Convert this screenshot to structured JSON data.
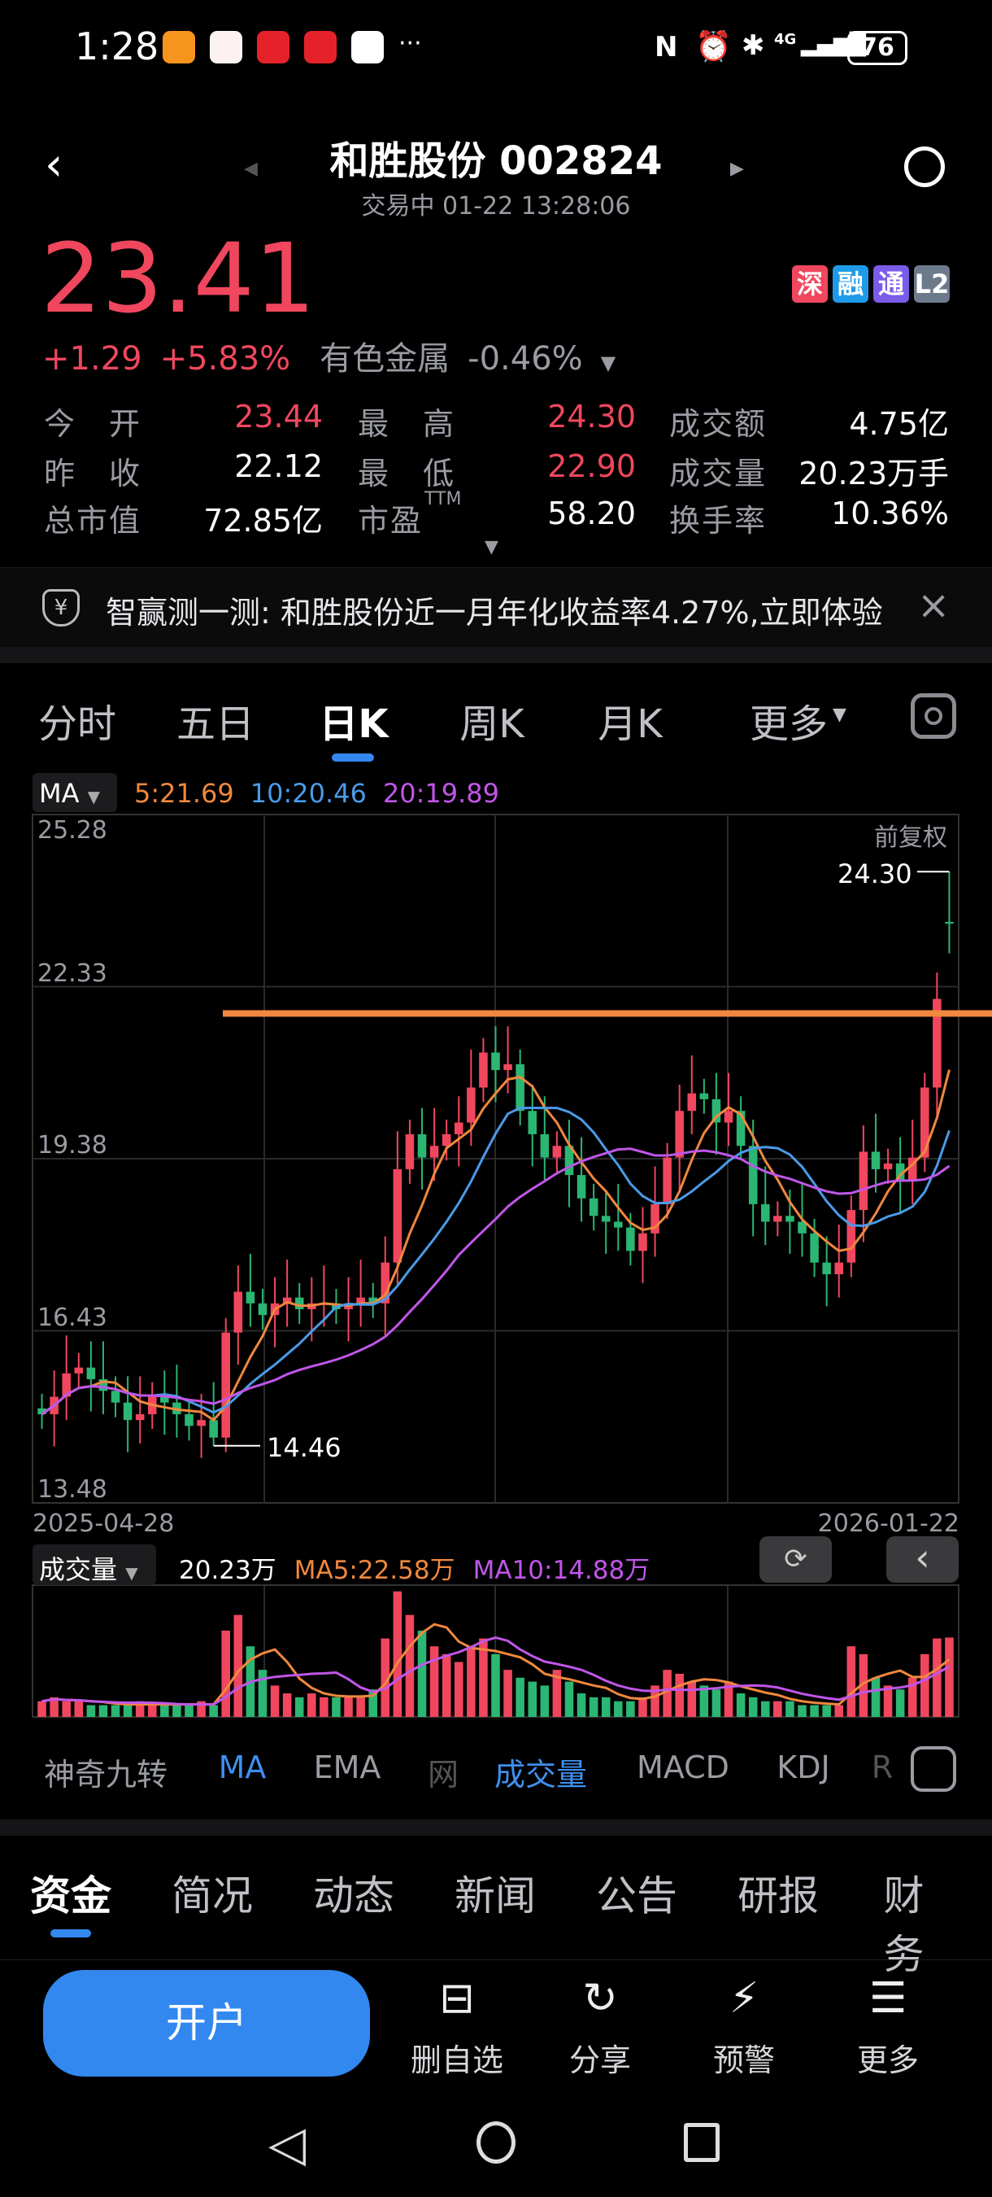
{
  "status_bar": {
    "time": "1:28",
    "battery": "76",
    "network": "4G",
    "more": "···"
  },
  "header": {
    "title": "和胜股份 002824",
    "subtitle": "交易中 01-22 13:28:06"
  },
  "quote": {
    "price": "23.41",
    "change": "+1.29",
    "change_pct": "+5.83%",
    "sector": "有色金属",
    "sector_change": "-0.46%",
    "badges": [
      {
        "label": "深",
        "color": "#f0475e"
      },
      {
        "label": "融",
        "color": "#1e9be8"
      },
      {
        "label": "通",
        "color": "#7b5ce8"
      },
      {
        "label": "L2",
        "color": "#6c7a8c"
      }
    ],
    "stats": [
      {
        "label": "今　开",
        "value": "23.44",
        "color": "#f0475e"
      },
      {
        "label": "最　高",
        "value": "24.30",
        "color": "#f0475e"
      },
      {
        "label": "成交额",
        "value": "4.75亿",
        "color": "#ffffff"
      },
      {
        "label": "昨　收",
        "value": "22.12",
        "color": "#ffffff"
      },
      {
        "label": "最　低",
        "value": "22.90",
        "color": "#f0475e"
      },
      {
        "label": "成交量",
        "value": "20.23万手",
        "color": "#ffffff"
      },
      {
        "label": "总市值",
        "value": "72.85亿",
        "color": "#ffffff"
      },
      {
        "label": "市盈",
        "sup": "TTM",
        "value": "58.20",
        "color": "#ffffff"
      },
      {
        "label": "换手率",
        "value": "10.36%",
        "color": "#ffffff"
      }
    ]
  },
  "banner": {
    "text": "智赢测一测: 和胜股份近一月年化收益率4.27%,立即体验"
  },
  "chart_tabs": [
    "分时",
    "五日",
    "日K",
    "周K",
    "月K",
    "更多"
  ],
  "active_chart_tab": "日K",
  "ma_legend": {
    "selector": "MA",
    "ma5": "5:21.69",
    "ma10": "10:20.46",
    "ma20": "20:19.89"
  },
  "colors": {
    "up": "#f0475e",
    "down": "#2bb673",
    "ma5": "#f0883e",
    "ma10": "#4a9be8",
    "ma20": "#c056e8",
    "accent": "#3388f0",
    "trendline": "#f0883e"
  },
  "chart_data": {
    "type": "candlestick",
    "adjust_label": "前复权",
    "y_ticks": [
      "25.28",
      "22.33",
      "19.38",
      "16.43",
      "13.48"
    ],
    "ylim": [
      13.48,
      25.28
    ],
    "x_start": "2025-04-28",
    "x_end": "2026-01-22",
    "grid": true,
    "max_label": "24.30",
    "min_label": "14.46",
    "trendline_price": 21.87,
    "close": [
      15.0,
      15.3,
      15.7,
      15.8,
      15.6,
      15.4,
      15.2,
      14.9,
      15.0,
      15.3,
      15.2,
      15.0,
      14.8,
      14.9,
      14.6,
      16.4,
      17.1,
      16.9,
      16.7,
      16.9,
      17.0,
      16.8,
      16.9,
      16.9,
      16.8,
      16.9,
      17.0,
      16.9,
      17.6,
      19.2,
      19.8,
      19.4,
      19.6,
      19.8,
      20.0,
      20.6,
      21.2,
      20.9,
      21.0,
      20.2,
      19.8,
      19.4,
      19.6,
      19.1,
      18.7,
      18.4,
      18.3,
      18.2,
      17.8,
      18.1,
      18.6,
      19.4,
      20.2,
      20.5,
      20.4,
      20.0,
      20.2,
      19.6,
      18.6,
      18.3,
      18.4,
      18.3,
      18.1,
      17.6,
      17.4,
      17.6,
      18.5,
      19.5,
      19.2,
      19.3,
      19.0,
      19.4,
      20.6,
      22.12,
      23.41
    ],
    "last_day": {
      "open": 23.44,
      "high": 24.3,
      "low": 22.9,
      "close": 23.41
    },
    "volume": {
      "label": "成交量",
      "value": "20.23万",
      "ma5": "MA5:22.58万",
      "ma10": "MA10:14.88万",
      "values": [
        4,
        5,
        4,
        4,
        3,
        3,
        3,
        3,
        4,
        3,
        3,
        3,
        3,
        4,
        3,
        22,
        26,
        18,
        12,
        8,
        6,
        5,
        6,
        5,
        5,
        5,
        5,
        7,
        20,
        32,
        26,
        22,
        18,
        16,
        14,
        18,
        20,
        16,
        12,
        10,
        9,
        8,
        12,
        9,
        6,
        5,
        5,
        4,
        4,
        5,
        8,
        12,
        11,
        9,
        8,
        7,
        9,
        6,
        5,
        4,
        4,
        4,
        3,
        3,
        3,
        3,
        18,
        16,
        10,
        8,
        7,
        10,
        16,
        20,
        20.23
      ]
    }
  },
  "indicator_tabs": [
    "神奇九转",
    "MA",
    "EMA",
    "网",
    "成交量",
    "MACD",
    "KDJ",
    "R"
  ],
  "bottom_tabs": [
    "资金",
    "简况",
    "动态",
    "新闻",
    "公告",
    "研报",
    "财务"
  ],
  "actions": {
    "open_account": "开户",
    "items": [
      {
        "label": "删自选",
        "icon": "remove-watchlist-icon"
      },
      {
        "label": "分享",
        "icon": "share-icon"
      },
      {
        "label": "预警",
        "icon": "alert-icon"
      },
      {
        "label": "更多",
        "icon": "more-icon"
      }
    ]
  }
}
